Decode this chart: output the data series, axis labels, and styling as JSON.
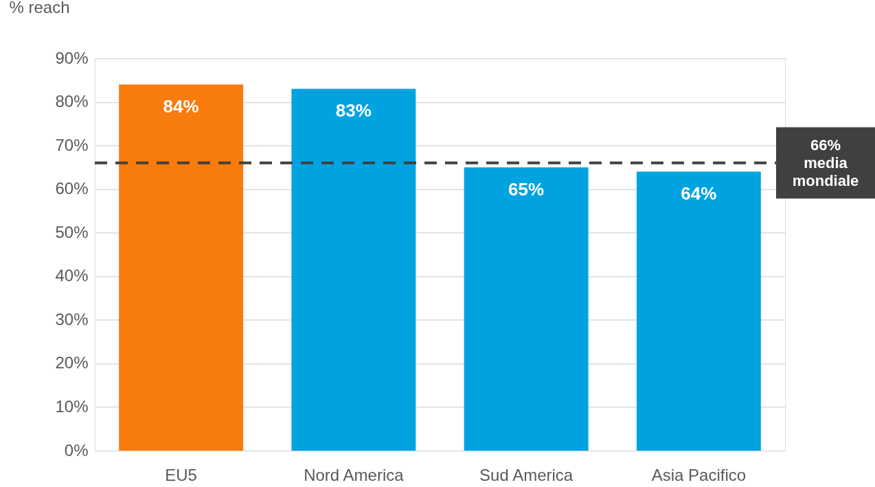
{
  "chart_data": {
    "type": "bar",
    "ylabel": "% reach",
    "categories": [
      "EU5",
      "Nord America",
      "Sud America",
      "Asia Pacifico"
    ],
    "values": [
      84,
      83,
      65,
      64
    ],
    "colors": [
      "#f77b0d",
      "#00a3e0",
      "#00a3e0",
      "#00a3e0"
    ],
    "value_labels": [
      "84%",
      "83%",
      "65%",
      "64%"
    ],
    "ylim": [
      0,
      90
    ],
    "yticks": [
      {
        "value": 0,
        "label": "0%"
      },
      {
        "value": 10,
        "label": "10%"
      },
      {
        "value": 20,
        "label": "20%"
      },
      {
        "value": 30,
        "label": "30%"
      },
      {
        "value": 40,
        "label": "40%"
      },
      {
        "value": 50,
        "label": "50%"
      },
      {
        "value": 60,
        "label": "60%"
      },
      {
        "value": 70,
        "label": "70%"
      },
      {
        "value": 80,
        "label": "80%"
      },
      {
        "value": 90,
        "label": "90%"
      }
    ],
    "ref_lines": [
      {
        "axis": "y",
        "value": 66,
        "label": "66%\nmedia\nmondiale",
        "color": "#404040",
        "line_style": "dashed"
      }
    ],
    "grid": "y"
  }
}
